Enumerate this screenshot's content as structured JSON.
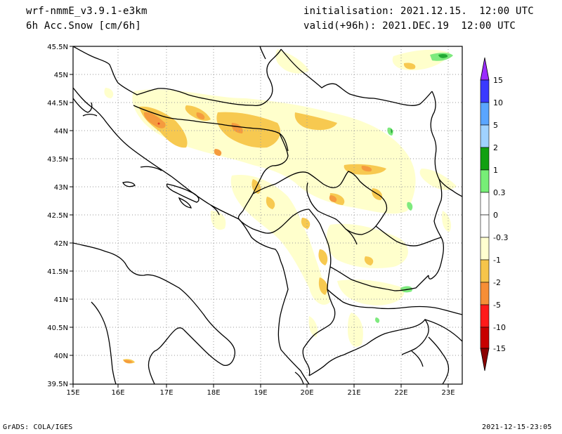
{
  "header": {
    "model": "wrf-nmmE_v3.9.1-e3km",
    "field": "6h Acc.Snow [cm/6h]",
    "init": "initialisation: 2021.12.15.  12:00 UTC",
    "valid": "valid(+96h): 2021.DEC.19  12:00 UTC"
  },
  "footer": {
    "credit": "GrADS: COLA/IGES",
    "timestamp": "2021-12-15-23:05"
  },
  "axes": {
    "lon_labels": [
      "15E",
      "16E",
      "17E",
      "18E",
      "19E",
      "20E",
      "21E",
      "22E",
      "23E"
    ],
    "lat_labels": [
      "45.5N",
      "45N",
      "44.5N",
      "44N",
      "43.5N",
      "43N",
      "42.5N",
      "42N",
      "41.5N",
      "41N",
      "40.5N",
      "40N",
      "39.5N"
    ],
    "lon_range": [
      15,
      23.3
    ],
    "lat_range": [
      39.5,
      45.5
    ],
    "grid": true
  },
  "colorbar": {
    "labels": [
      "15",
      "10",
      "5",
      "2",
      "1",
      "0.3",
      "0",
      "-0.3",
      "-1",
      "-2",
      "-5",
      "-10",
      "-15"
    ],
    "colors": [
      "#9a2bff",
      "#3a3aff",
      "#5aa5ff",
      "#a0d2ff",
      "#11a011",
      "#77ee77",
      "#ffffff",
      "#ffffff",
      "#ffffd0",
      "#f6c54a",
      "#f68e36",
      "#ff1a1a",
      "#c80000",
      "#8a0000"
    ]
  },
  "legend_colors": {
    "light": "#ffffcc",
    "yellow": "#f7c950",
    "orange": "#f59b3e",
    "green": "#22bb33",
    "lightgreen": "#7eea7e"
  }
}
